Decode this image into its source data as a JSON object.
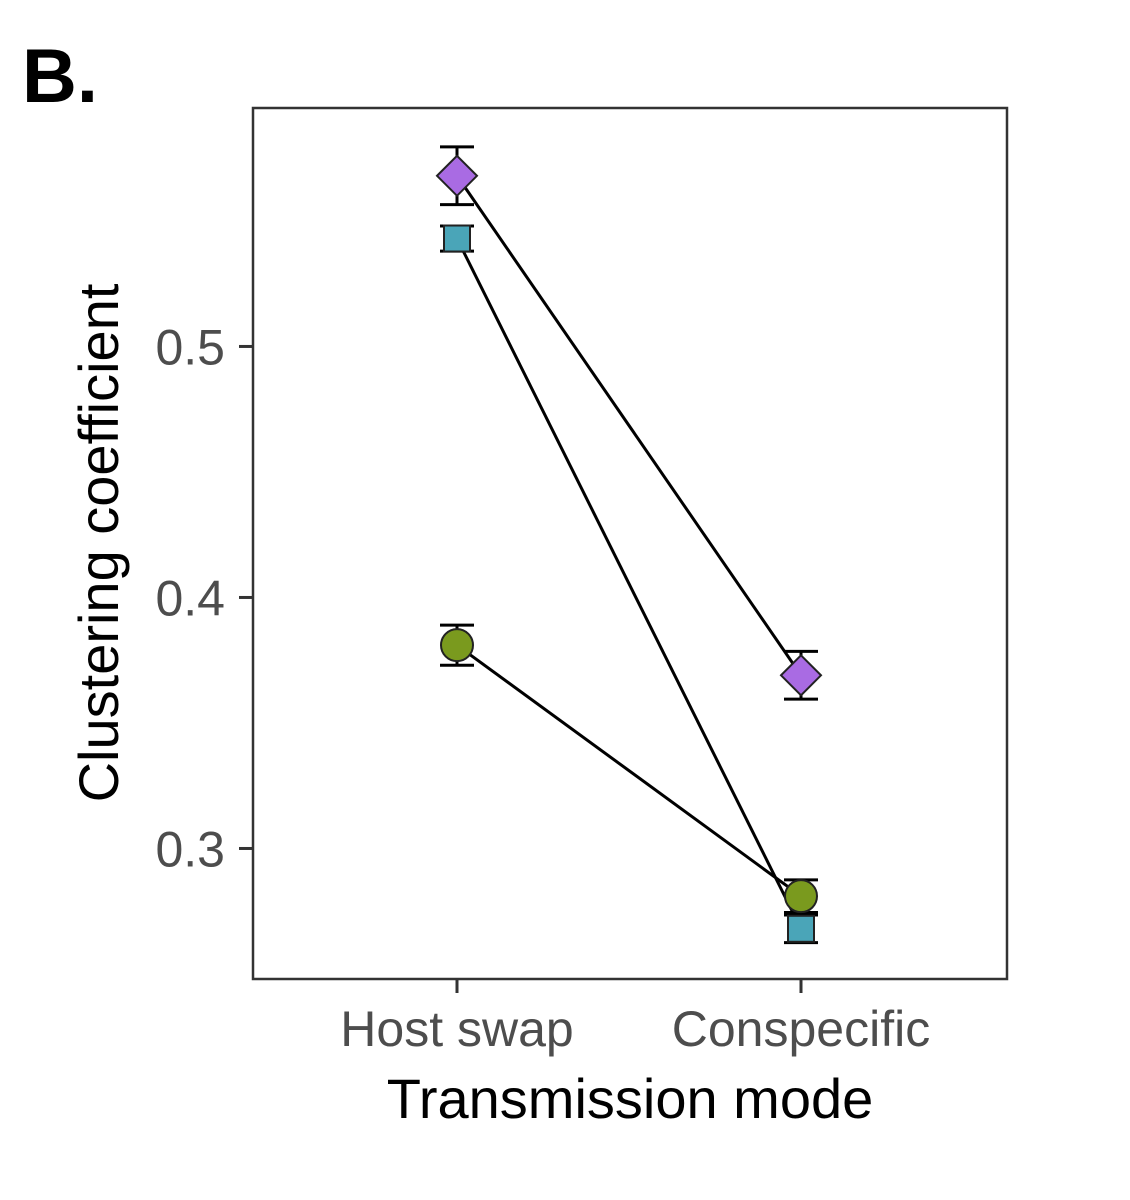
{
  "figure": {
    "panel_label": "B."
  },
  "chart_data": {
    "type": "line",
    "title": "",
    "xlabel": "Transmission mode",
    "ylabel": "Clustering coefficient",
    "categories": [
      "Host swap",
      "Conspecific"
    ],
    "ylim": [
      0.248,
      0.595
    ],
    "yticks": [
      0.3,
      0.4,
      0.5
    ],
    "ytick_labels": [
      "0.3",
      "0.4",
      "0.5"
    ],
    "grid": false,
    "legend": "none",
    "series": [
      {
        "name": "diamond series",
        "marker": "diamond",
        "color": "#a96be3",
        "values": [
          0.568,
          0.369
        ],
        "errors": [
          0.0115,
          0.0095
        ]
      },
      {
        "name": "square series",
        "marker": "square",
        "color": "#4aa5b8",
        "values": [
          0.543,
          0.268
        ],
        "errors": [
          0.005,
          0.0055
        ]
      },
      {
        "name": "circle series",
        "marker": "circle",
        "color": "#7a9a1e",
        "values": [
          0.381,
          0.281
        ],
        "errors": [
          0.008,
          0.0065
        ]
      }
    ]
  }
}
